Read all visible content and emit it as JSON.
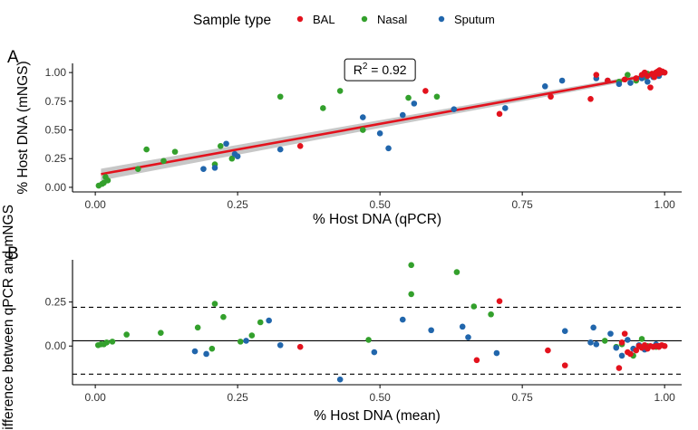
{
  "legend": {
    "title": "Sample type",
    "entries": [
      {
        "label": "BAL",
        "color": "#e3121d"
      },
      {
        "label": "Nasal",
        "color": "#33a02c"
      },
      {
        "label": "Sputum",
        "color": "#2166ac"
      }
    ]
  },
  "chart_data": [
    {
      "type": "scatter",
      "panel_tag": "A",
      "xlabel": "% Host DNA (qPCR)",
      "ylabel": "% Host DNA (mNGS)",
      "xlim": [
        -0.04,
        1.03
      ],
      "ylim": [
        -0.04,
        1.08
      ],
      "x_ticks": [
        0,
        0.25,
        0.5,
        0.75,
        1.0
      ],
      "x_tick_labels": [
        "0.00",
        "0.25",
        "0.50",
        "0.75",
        "1.00"
      ],
      "y_ticks": [
        0,
        0.25,
        0.5,
        0.75,
        1.0
      ],
      "y_tick_labels": [
        "0.00",
        "0.25",
        "0.50",
        "0.75",
        "1.00"
      ],
      "grid": false,
      "annotation": {
        "prefix": "R",
        "sup": "2",
        "suffix": " = 0.92",
        "x": 0.5,
        "y": 1.0
      },
      "fit_line": {
        "x": [
          0.01,
          1.0
        ],
        "y": [
          0.115,
          1.0
        ],
        "color": "#e3121d",
        "band": true
      },
      "series": [
        {
          "name": "Nasal",
          "color": "#33a02c",
          "points": [
            [
              0.006,
              0.015
            ],
            [
              0.012,
              0.03
            ],
            [
              0.015,
              0.04
            ],
            [
              0.018,
              0.09
            ],
            [
              0.022,
              0.06
            ],
            [
              0.075,
              0.16
            ],
            [
              0.09,
              0.33
            ],
            [
              0.12,
              0.23
            ],
            [
              0.14,
              0.31
            ],
            [
              0.21,
              0.2
            ],
            [
              0.22,
              0.36
            ],
            [
              0.24,
              0.25
            ],
            [
              0.325,
              0.79
            ],
            [
              0.4,
              0.69
            ],
            [
              0.43,
              0.84
            ],
            [
              0.47,
              0.5
            ],
            [
              0.55,
              0.78
            ],
            [
              0.6,
              0.79
            ],
            [
              0.92,
              0.92
            ],
            [
              0.935,
              0.98
            ],
            [
              0.95,
              0.93
            ],
            [
              0.965,
              0.96
            ],
            [
              0.97,
              0.99
            ],
            [
              0.98,
              0.97
            ],
            [
              0.985,
              1.0
            ]
          ]
        },
        {
          "name": "Sputum",
          "color": "#2166ac",
          "points": [
            [
              0.19,
              0.16
            ],
            [
              0.21,
              0.17
            ],
            [
              0.23,
              0.38
            ],
            [
              0.245,
              0.29
            ],
            [
              0.25,
              0.27
            ],
            [
              0.325,
              0.33
            ],
            [
              0.47,
              0.61
            ],
            [
              0.5,
              0.47
            ],
            [
              0.515,
              0.34
            ],
            [
              0.54,
              0.63
            ],
            [
              0.56,
              0.73
            ],
            [
              0.63,
              0.68
            ],
            [
              0.72,
              0.69
            ],
            [
              0.79,
              0.88
            ],
            [
              0.82,
              0.93
            ],
            [
              0.88,
              0.95
            ],
            [
              0.9,
              0.93
            ],
            [
              0.92,
              0.9
            ],
            [
              0.94,
              0.91
            ],
            [
              0.96,
              0.95
            ],
            [
              0.97,
              0.92
            ],
            [
              0.98,
              0.96
            ],
            [
              0.99,
              0.97
            ],
            [
              0.995,
              1.0
            ]
          ]
        },
        {
          "name": "BAL",
          "color": "#e3121d",
          "points": [
            [
              0.36,
              0.36
            ],
            [
              0.58,
              0.84
            ],
            [
              0.71,
              0.64
            ],
            [
              0.8,
              0.79
            ],
            [
              0.87,
              0.77
            ],
            [
              0.88,
              0.98
            ],
            [
              0.9,
              0.93
            ],
            [
              0.93,
              0.94
            ],
            [
              0.95,
              0.95
            ],
            [
              0.96,
              0.98
            ],
            [
              0.965,
              1.0
            ],
            [
              0.97,
              0.97
            ],
            [
              0.975,
              0.87
            ],
            [
              0.978,
              0.99
            ],
            [
              0.98,
              0.98
            ],
            [
              0.985,
              1.0
            ],
            [
              0.988,
              1.01
            ],
            [
              0.99,
              0.99
            ],
            [
              0.993,
              1.0
            ],
            [
              0.996,
              1.01
            ],
            [
              1.0,
              1.0
            ],
            [
              0.982,
              0.96
            ],
            [
              0.991,
              1.02
            ]
          ]
        }
      ]
    },
    {
      "type": "scatter",
      "panel_tag": "B",
      "xlabel": "% Host DNA (mean)",
      "ylabel": "Difference between qPCR and mNGS",
      "xlim": [
        -0.04,
        1.03
      ],
      "ylim": [
        -0.22,
        0.49
      ],
      "x_ticks": [
        0,
        0.25,
        0.5,
        0.75,
        1.0
      ],
      "x_tick_labels": [
        "0.00",
        "0.25",
        "0.50",
        "0.75",
        "1.00"
      ],
      "y_ticks": [
        0,
        0.25
      ],
      "y_tick_labels": [
        "0.00",
        "0.25"
      ],
      "grid": false,
      "hlines": [
        {
          "y": 0.03,
          "style": "solid"
        },
        {
          "y": 0.22,
          "style": "dashed"
        },
        {
          "y": -0.16,
          "style": "dashed"
        }
      ],
      "series": [
        {
          "name": "Nasal",
          "color": "#33a02c",
          "points": [
            [
              0.005,
              0.005
            ],
            [
              0.01,
              0.01
            ],
            [
              0.015,
              0.01
            ],
            [
              0.02,
              0.02
            ],
            [
              0.03,
              0.025
            ],
            [
              0.055,
              0.065
            ],
            [
              0.115,
              0.075
            ],
            [
              0.18,
              0.105
            ],
            [
              0.205,
              -0.015
            ],
            [
              0.21,
              0.24
            ],
            [
              0.225,
              0.165
            ],
            [
              0.255,
              0.025
            ],
            [
              0.275,
              0.06
            ],
            [
              0.29,
              0.135
            ],
            [
              0.48,
              0.035
            ],
            [
              0.555,
              0.295
            ],
            [
              0.555,
              0.46
            ],
            [
              0.635,
              0.42
            ],
            [
              0.665,
              0.225
            ],
            [
              0.695,
              0.18
            ],
            [
              0.895,
              0.03
            ],
            [
              0.915,
              -0.005
            ],
            [
              0.925,
              0.01
            ],
            [
              0.945,
              -0.055
            ],
            [
              0.96,
              0.04
            ],
            [
              0.97,
              0.0
            ],
            [
              0.985,
              -0.005
            ]
          ]
        },
        {
          "name": "Sputum",
          "color": "#2166ac",
          "points": [
            [
              0.175,
              -0.03
            ],
            [
              0.195,
              -0.045
            ],
            [
              0.265,
              0.03
            ],
            [
              0.305,
              0.145
            ],
            [
              0.325,
              0.005
            ],
            [
              0.43,
              -0.19
            ],
            [
              0.49,
              -0.035
            ],
            [
              0.54,
              0.15
            ],
            [
              0.59,
              0.09
            ],
            [
              0.645,
              0.11
            ],
            [
              0.655,
              0.05
            ],
            [
              0.705,
              -0.04
            ],
            [
              0.825,
              0.085
            ],
            [
              0.87,
              0.02
            ],
            [
              0.875,
              0.105
            ],
            [
              0.88,
              0.01
            ],
            [
              0.905,
              0.07
            ],
            [
              0.915,
              -0.01
            ],
            [
              0.925,
              -0.055
            ],
            [
              0.935,
              0.035
            ],
            [
              0.945,
              -0.015
            ],
            [
              0.955,
              0.005
            ],
            [
              0.965,
              -0.02
            ],
            [
              0.985,
              0.01
            ]
          ]
        },
        {
          "name": "BAL",
          "color": "#e3121d",
          "points": [
            [
              0.36,
              -0.005
            ],
            [
              0.67,
              -0.08
            ],
            [
              0.71,
              0.255
            ],
            [
              0.795,
              -0.025
            ],
            [
              0.825,
              -0.11
            ],
            [
              0.92,
              -0.125
            ],
            [
              0.925,
              0.02
            ],
            [
              0.935,
              -0.035
            ],
            [
              0.94,
              -0.045
            ],
            [
              0.95,
              -0.025
            ],
            [
              0.955,
              0.0
            ],
            [
              0.96,
              -0.01
            ],
            [
              0.965,
              0.005
            ],
            [
              0.97,
              -0.015
            ],
            [
              0.975,
              0.0
            ],
            [
              0.98,
              -0.005
            ],
            [
              0.985,
              0.0
            ],
            [
              0.99,
              -0.005
            ],
            [
              0.995,
              0.005
            ],
            [
              1.0,
              0.0
            ],
            [
              0.93,
              0.07
            ],
            [
              0.99,
              0.0
            ]
          ]
        }
      ]
    }
  ]
}
